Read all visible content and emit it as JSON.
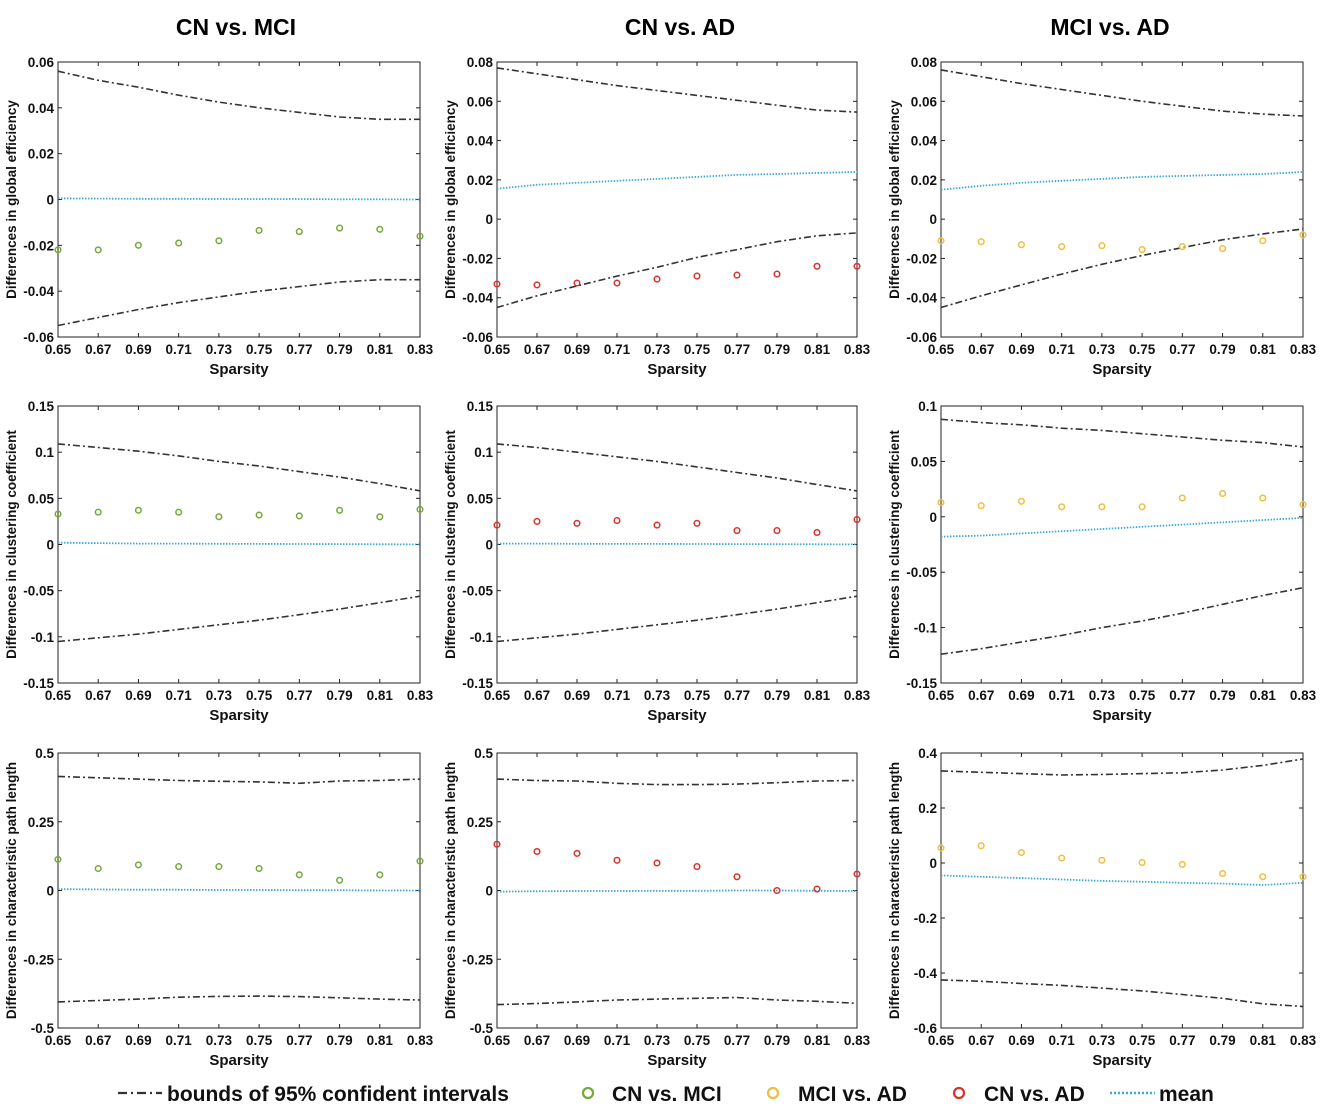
{
  "column_titles": [
    "CN vs. MCI",
    "CN vs. AD",
    "MCI vs. AD"
  ],
  "legend": {
    "bounds": "bounds of 95% confident intervals",
    "cn_mci": "CN vs. MCI",
    "mci_ad": "MCI vs. AD",
    "cn_ad": "CN vs. AD",
    "mean": "mean"
  },
  "colors": {
    "bounds": "#333333",
    "mean": "#3fa9d8",
    "cn_mci": "#74a83a",
    "mci_ad": "#f1bd3c",
    "cn_ad": "#d9312b"
  },
  "chart_data": [
    {
      "type": "scatter",
      "title": "CN vs. MCI",
      "xlabel": "Sparsity",
      "ylabel": "Differences in global efficiency",
      "x": [
        0.65,
        0.67,
        0.69,
        0.71,
        0.73,
        0.75,
        0.77,
        0.79,
        0.81,
        0.83
      ],
      "xticks": [
        "0.65",
        "0.67",
        "0.69",
        "0.71",
        "0.73",
        "0.75",
        "0.77",
        "0.79",
        "0.81",
        "0.83"
      ],
      "ylim": [
        -0.06,
        0.06
      ],
      "yticks": [
        "-0.06",
        "-0.04",
        "-0.02",
        "0",
        "0.02",
        "0.04",
        "0.06"
      ],
      "series": [
        {
          "name": "upper bound",
          "style": "bounds",
          "values": [
            0.056,
            0.052,
            0.049,
            0.0455,
            0.0425,
            0.04,
            0.038,
            0.036,
            0.035,
            0.035
          ]
        },
        {
          "name": "lower bound",
          "style": "bounds",
          "values": [
            -0.055,
            -0.0515,
            -0.048,
            -0.045,
            -0.0425,
            -0.04,
            -0.038,
            -0.036,
            -0.035,
            -0.035
          ]
        },
        {
          "name": "mean",
          "style": "mean",
          "values": [
            0.0005,
            0.0004,
            0.0003,
            0.0003,
            0.0002,
            0.0002,
            0.0002,
            0.0001,
            0.0001,
            0.0
          ]
        },
        {
          "name": "CN vs. MCI",
          "style": "cn_mci",
          "values": [
            -0.022,
            -0.022,
            -0.02,
            -0.019,
            -0.018,
            -0.0135,
            -0.014,
            -0.0125,
            -0.013,
            -0.016
          ]
        }
      ]
    },
    {
      "type": "scatter",
      "title": "CN vs. AD",
      "xlabel": "Sparsity",
      "ylabel": "Differences in global efficiency",
      "x": [
        0.65,
        0.67,
        0.69,
        0.71,
        0.73,
        0.75,
        0.77,
        0.79,
        0.81,
        0.83
      ],
      "xticks": [
        "0.65",
        "0.67",
        "0.69",
        "0.71",
        "0.73",
        "0.75",
        "0.77",
        "0.79",
        "0.81",
        "0.83"
      ],
      "ylim": [
        -0.06,
        0.08
      ],
      "yticks": [
        "-0.06",
        "-0.04",
        "-0.02",
        "0",
        "0.02",
        "0.04",
        "0.06",
        "0.08"
      ],
      "series": [
        {
          "name": "upper bound",
          "style": "bounds",
          "values": [
            0.077,
            0.074,
            0.071,
            0.068,
            0.0655,
            0.063,
            0.0605,
            0.058,
            0.0555,
            0.0545
          ]
        },
        {
          "name": "lower bound",
          "style": "bounds",
          "values": [
            -0.045,
            -0.039,
            -0.034,
            -0.029,
            -0.0245,
            -0.0195,
            -0.0155,
            -0.0115,
            -0.0085,
            -0.007
          ]
        },
        {
          "name": "mean",
          "style": "mean",
          "values": [
            0.0155,
            0.0175,
            0.0185,
            0.0195,
            0.0205,
            0.0215,
            0.0225,
            0.023,
            0.0235,
            0.024
          ]
        },
        {
          "name": "CN vs. AD",
          "style": "cn_ad",
          "values": [
            -0.033,
            -0.0335,
            -0.0325,
            -0.0325,
            -0.0305,
            -0.029,
            -0.0285,
            -0.028,
            -0.024,
            -0.024
          ]
        }
      ]
    },
    {
      "type": "scatter",
      "title": "MCI vs. AD",
      "xlabel": "Sparsity",
      "ylabel": "Differences in global efficiency",
      "x": [
        0.65,
        0.67,
        0.69,
        0.71,
        0.73,
        0.75,
        0.77,
        0.79,
        0.81,
        0.83
      ],
      "xticks": [
        "0.65",
        "0.67",
        "0.69",
        "0.71",
        "0.73",
        "0.75",
        "0.77",
        "0.79",
        "0.81",
        "0.83"
      ],
      "ylim": [
        -0.06,
        0.08
      ],
      "yticks": [
        "-0.06",
        "-0.04",
        "-0.02",
        "0",
        "0.02",
        "0.04",
        "0.06",
        "0.08"
      ],
      "series": [
        {
          "name": "upper bound",
          "style": "bounds",
          "values": [
            0.076,
            0.0725,
            0.069,
            0.066,
            0.063,
            0.06,
            0.0575,
            0.055,
            0.0535,
            0.0525
          ]
        },
        {
          "name": "lower bound",
          "style": "bounds",
          "values": [
            -0.045,
            -0.039,
            -0.0335,
            -0.028,
            -0.023,
            -0.0185,
            -0.0145,
            -0.0105,
            -0.0075,
            -0.005
          ]
        },
        {
          "name": "mean",
          "style": "mean",
          "values": [
            0.015,
            0.017,
            0.0185,
            0.0195,
            0.0205,
            0.0215,
            0.022,
            0.0225,
            0.023,
            0.024
          ]
        },
        {
          "name": "MCI vs. AD",
          "style": "mci_ad",
          "values": [
            -0.011,
            -0.0115,
            -0.013,
            -0.014,
            -0.0135,
            -0.0155,
            -0.014,
            -0.015,
            -0.011,
            -0.008
          ]
        }
      ]
    },
    {
      "type": "scatter",
      "title": "CN vs. MCI",
      "xlabel": "Sparsity",
      "ylabel": "Differences in clustering coefficient",
      "x": [
        0.65,
        0.67,
        0.69,
        0.71,
        0.73,
        0.75,
        0.77,
        0.79,
        0.81,
        0.83
      ],
      "xticks": [
        "0.65",
        "0.67",
        "0.69",
        "0.71",
        "0.73",
        "0.75",
        "0.77",
        "0.79",
        "0.81",
        "0.83"
      ],
      "ylim": [
        -0.15,
        0.15
      ],
      "yticks": [
        "-0.15",
        "-0.1",
        "-0.05",
        "0",
        "0.05",
        "0.1",
        "0.15"
      ],
      "series": [
        {
          "name": "upper bound",
          "style": "bounds",
          "values": [
            0.109,
            0.105,
            0.101,
            0.096,
            0.09,
            0.085,
            0.079,
            0.073,
            0.066,
            0.058
          ]
        },
        {
          "name": "lower bound",
          "style": "bounds",
          "values": [
            -0.105,
            -0.101,
            -0.097,
            -0.092,
            -0.087,
            -0.082,
            -0.076,
            -0.07,
            -0.063,
            -0.056
          ]
        },
        {
          "name": "mean",
          "style": "mean",
          "values": [
            0.002,
            0.0015,
            0.001,
            0.001,
            0.0008,
            0.0006,
            0.0005,
            0.0004,
            0.0002,
            0.0001
          ]
        },
        {
          "name": "CN vs. MCI",
          "style": "cn_mci",
          "values": [
            0.033,
            0.035,
            0.037,
            0.035,
            0.03,
            0.032,
            0.031,
            0.037,
            0.03,
            0.038
          ]
        }
      ]
    },
    {
      "type": "scatter",
      "title": "CN vs. AD",
      "xlabel": "Sparsity",
      "ylabel": "Differences in clustering coefficient",
      "x": [
        0.65,
        0.67,
        0.69,
        0.71,
        0.73,
        0.75,
        0.77,
        0.79,
        0.81,
        0.83
      ],
      "xticks": [
        "0.65",
        "0.67",
        "0.69",
        "0.71",
        "0.73",
        "0.75",
        "0.77",
        "0.79",
        "0.81",
        "0.83"
      ],
      "ylim": [
        -0.15,
        0.15
      ],
      "yticks": [
        "-0.15",
        "-0.1",
        "-0.05",
        "0",
        "0.05",
        "0.1",
        "0.15"
      ],
      "series": [
        {
          "name": "upper bound",
          "style": "bounds",
          "values": [
            0.109,
            0.105,
            0.1,
            0.095,
            0.09,
            0.084,
            0.078,
            0.072,
            0.065,
            0.058
          ]
        },
        {
          "name": "lower bound",
          "style": "bounds",
          "values": [
            -0.105,
            -0.101,
            -0.097,
            -0.092,
            -0.087,
            -0.082,
            -0.076,
            -0.07,
            -0.063,
            -0.056
          ]
        },
        {
          "name": "mean",
          "style": "mean",
          "values": [
            0.001,
            0.001,
            0.0008,
            0.0007,
            0.0006,
            0.0005,
            0.0004,
            0.0003,
            0.0002,
            0.0001
          ]
        },
        {
          "name": "CN vs. AD",
          "style": "cn_ad",
          "values": [
            0.021,
            0.025,
            0.023,
            0.026,
            0.021,
            0.023,
            0.015,
            0.015,
            0.013,
            0.027
          ]
        }
      ]
    },
    {
      "type": "scatter",
      "title": "MCI vs. AD",
      "xlabel": "Sparsity",
      "ylabel": "Differences in clustering coefficient",
      "x": [
        0.65,
        0.67,
        0.69,
        0.71,
        0.73,
        0.75,
        0.77,
        0.79,
        0.81,
        0.83
      ],
      "xticks": [
        "0.65",
        "0.67",
        "0.69",
        "0.71",
        "0.73",
        "0.75",
        "0.77",
        "0.79",
        "0.81",
        "0.83"
      ],
      "ylim": [
        -0.15,
        0.1
      ],
      "yticks": [
        "-0.15",
        "-0.1",
        "-0.05",
        "0",
        "0.05",
        "0.1"
      ],
      "series": [
        {
          "name": "upper bound",
          "style": "bounds",
          "values": [
            0.088,
            0.085,
            0.083,
            0.08,
            0.078,
            0.075,
            0.072,
            0.069,
            0.067,
            0.063
          ]
        },
        {
          "name": "lower bound",
          "style": "bounds",
          "values": [
            -0.124,
            -0.119,
            -0.113,
            -0.107,
            -0.1,
            -0.094,
            -0.087,
            -0.079,
            -0.071,
            -0.064
          ]
        },
        {
          "name": "mean",
          "style": "mean",
          "values": [
            -0.018,
            -0.017,
            -0.015,
            -0.013,
            -0.011,
            -0.009,
            -0.007,
            -0.005,
            -0.003,
            -0.001
          ]
        },
        {
          "name": "MCI vs. AD",
          "style": "mci_ad",
          "values": [
            0.013,
            0.01,
            0.014,
            0.009,
            0.009,
            0.009,
            0.017,
            0.021,
            0.017,
            0.011
          ]
        }
      ]
    },
    {
      "type": "scatter",
      "title": "CN vs. MCI",
      "xlabel": "Sparsity",
      "ylabel": "Differences in characteristic path length",
      "x": [
        0.65,
        0.67,
        0.69,
        0.71,
        0.73,
        0.75,
        0.77,
        0.79,
        0.81,
        0.83
      ],
      "xticks": [
        "0.65",
        "0.67",
        "0.69",
        "0.71",
        "0.73",
        "0.75",
        "0.77",
        "0.79",
        "0.81",
        "0.83"
      ],
      "ylim": [
        -0.5,
        0.5
      ],
      "yticks": [
        "-0.5",
        "-0.25",
        "0",
        "0.25",
        "0.5"
      ],
      "series": [
        {
          "name": "upper bound",
          "style": "bounds",
          "values": [
            0.415,
            0.41,
            0.405,
            0.4,
            0.397,
            0.395,
            0.39,
            0.398,
            0.4,
            0.405
          ]
        },
        {
          "name": "lower bound",
          "style": "bounds",
          "values": [
            -0.405,
            -0.4,
            -0.395,
            -0.388,
            -0.385,
            -0.384,
            -0.386,
            -0.39,
            -0.395,
            -0.398
          ]
        },
        {
          "name": "mean",
          "style": "mean",
          "values": [
            0.005,
            0.004,
            0.003,
            0.003,
            0.002,
            0.002,
            0.001,
            0.001,
            0.0,
            0.0
          ]
        },
        {
          "name": "CN vs. MCI",
          "style": "cn_mci",
          "values": [
            0.113,
            0.08,
            0.093,
            0.087,
            0.087,
            0.08,
            0.057,
            0.037,
            0.057,
            0.107
          ]
        }
      ]
    },
    {
      "type": "scatter",
      "title": "CN vs. AD",
      "xlabel": "Sparsity",
      "ylabel": "Differences in characteristic path length",
      "x": [
        0.65,
        0.67,
        0.69,
        0.71,
        0.73,
        0.75,
        0.77,
        0.79,
        0.81,
        0.83
      ],
      "xticks": [
        "0.65",
        "0.67",
        "0.69",
        "0.71",
        "0.73",
        "0.75",
        "0.77",
        "0.79",
        "0.81",
        "0.83"
      ],
      "ylim": [
        -0.5,
        0.5
      ],
      "yticks": [
        "-0.5",
        "-0.25",
        "0",
        "0.25",
        "0.5"
      ],
      "series": [
        {
          "name": "upper bound",
          "style": "bounds",
          "values": [
            0.405,
            0.4,
            0.398,
            0.39,
            0.385,
            0.385,
            0.387,
            0.392,
            0.398,
            0.4
          ]
        },
        {
          "name": "lower bound",
          "style": "bounds",
          "values": [
            -0.415,
            -0.411,
            -0.405,
            -0.398,
            -0.395,
            -0.392,
            -0.389,
            -0.398,
            -0.403,
            -0.41
          ]
        },
        {
          "name": "mean",
          "style": "mean",
          "values": [
            -0.004,
            -0.003,
            -0.002,
            -0.002,
            -0.001,
            -0.001,
            0.0,
            0.0,
            -0.001,
            -0.002
          ]
        },
        {
          "name": "CN vs. AD",
          "style": "cn_ad",
          "values": [
            0.168,
            0.142,
            0.135,
            0.11,
            0.1,
            0.087,
            0.05,
            0.0,
            0.005,
            0.06
          ]
        }
      ]
    },
    {
      "type": "scatter",
      "title": "MCI vs. AD",
      "xlabel": "Sparsity",
      "ylabel": "Differences in characteristic path length",
      "x": [
        0.65,
        0.67,
        0.69,
        0.71,
        0.73,
        0.75,
        0.77,
        0.79,
        0.81,
        0.83
      ],
      "xticks": [
        "0.65",
        "0.67",
        "0.69",
        "0.71",
        "0.73",
        "0.75",
        "0.77",
        "0.79",
        "0.81",
        "0.83"
      ],
      "ylim": [
        -0.6,
        0.4
      ],
      "yticks": [
        "-0.6",
        "-0.4",
        "-0.2",
        "0",
        "0.2",
        "0.4"
      ],
      "series": [
        {
          "name": "upper bound",
          "style": "bounds",
          "values": [
            0.335,
            0.33,
            0.325,
            0.32,
            0.322,
            0.325,
            0.328,
            0.338,
            0.355,
            0.378
          ]
        },
        {
          "name": "lower bound",
          "style": "bounds",
          "values": [
            -0.425,
            -0.43,
            -0.438,
            -0.445,
            -0.455,
            -0.465,
            -0.478,
            -0.492,
            -0.512,
            -0.522
          ]
        },
        {
          "name": "mean",
          "style": "mean",
          "values": [
            -0.045,
            -0.05,
            -0.055,
            -0.06,
            -0.065,
            -0.068,
            -0.072,
            -0.075,
            -0.08,
            -0.072
          ]
        },
        {
          "name": "MCI vs. AD",
          "style": "mci_ad",
          "values": [
            0.055,
            0.063,
            0.038,
            0.018,
            0.01,
            0.002,
            -0.005,
            -0.038,
            -0.05,
            -0.05
          ]
        }
      ]
    }
  ]
}
